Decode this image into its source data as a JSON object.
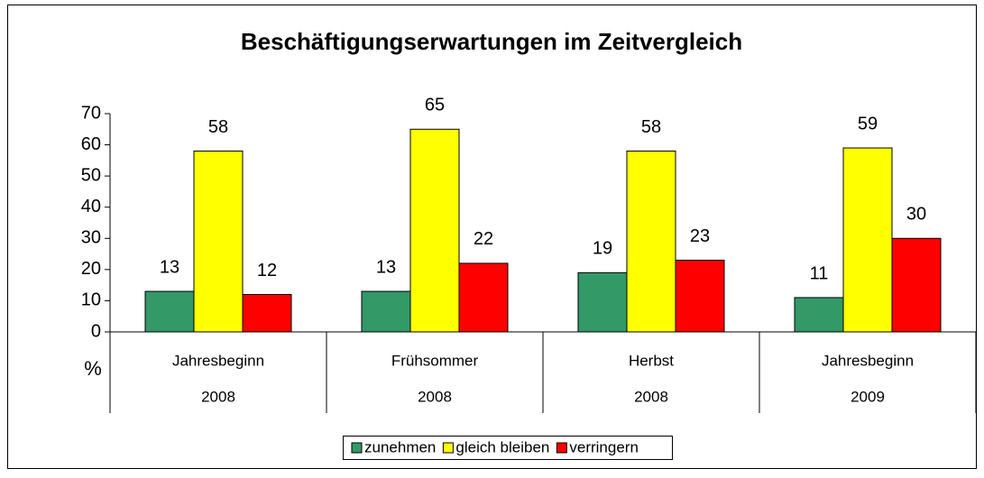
{
  "chart_data": {
    "type": "bar",
    "title": "Beschäftigungserwartungen im Zeitvergleich",
    "y_label": "%",
    "categories": [
      "Jahresbeginn",
      "Frühsommer",
      "Herbst",
      "Jahresbeginn"
    ],
    "years": [
      "2008",
      "2008",
      "2008",
      "2009"
    ],
    "series": [
      {
        "name": "zunehmen",
        "color": "#339966",
        "values": [
          13,
          13,
          19,
          11
        ]
      },
      {
        "name": "gleich bleiben",
        "color": "#ffff00",
        "values": [
          58,
          65,
          58,
          59
        ]
      },
      {
        "name": "verringern",
        "color": "#ff0000",
        "values": [
          12,
          22,
          23,
          30
        ]
      }
    ],
    "ylim": [
      0,
      70
    ],
    "yticks": [
      0,
      10,
      20,
      30,
      40,
      50,
      60,
      70
    ],
    "grid": false,
    "legend": "bottom"
  }
}
